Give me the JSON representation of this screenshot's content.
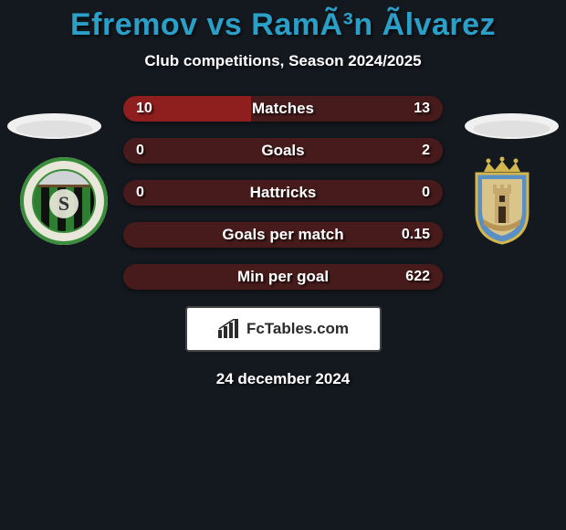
{
  "background_color": "#14191f",
  "title": {
    "player1": "Efremov",
    "vs": " vs ",
    "player2": "RamÃ³n Ãlvarez",
    "color": "#2aa0c9",
    "fontsize": 34
  },
  "subtitle": {
    "text": "Club competitions, Season 2024/2025",
    "color": "#ffffff",
    "fontsize": 17
  },
  "stats": {
    "pill_width": 350,
    "pill_height": 28,
    "pill_radius": 14,
    "pill_bg": "#471b1b",
    "fill_color": "#8f1e1e",
    "label_color": "#ffffff",
    "label_fontsize": 17,
    "rows": [
      {
        "label": "Matches",
        "left_val": "10",
        "right_val": "13",
        "left_fill_pct": 40,
        "right_fill_pct": 0
      },
      {
        "label": "Goals",
        "left_val": "0",
        "right_val": "2",
        "left_fill_pct": 0,
        "right_fill_pct": 0
      },
      {
        "label": "Hattricks",
        "left_val": "0",
        "right_val": "0",
        "left_fill_pct": 0,
        "right_fill_pct": 0
      },
      {
        "label": "Goals per match",
        "left_val": "",
        "right_val": "0.15",
        "left_fill_pct": 0,
        "right_fill_pct": 0
      },
      {
        "label": "Min per goal",
        "left_val": "",
        "right_val": "622",
        "left_fill_pct": 0,
        "right_fill_pct": 0
      }
    ]
  },
  "flags": {
    "left": {
      "bg": "#f0f0f0",
      "accent": "#d0d0d0"
    },
    "right": {
      "bg": "#f0f0f0",
      "accent": "#d0d0d0"
    }
  },
  "badges": {
    "left": {
      "outer_ring": "#3a8d3a",
      "inner_bg": "#0a0a0a",
      "stripe1": "#2e7d32",
      "stripe2": "#111111",
      "text_ring_bg": "#e9e6da",
      "center_text": "S"
    },
    "right": {
      "shield_border": "#d4b64f",
      "shield_blue": "#5a8fc4",
      "shield_sand": "#d9c48a",
      "crown": "#d4b64f",
      "tower": "#c7a970"
    }
  },
  "logo": {
    "box_bg": "#ffffff",
    "border": "#444444",
    "text": "FcTables.com",
    "text_color": "#2b2b2b",
    "chart_color": "#2b2b2b"
  },
  "date": {
    "text": "24 december 2024",
    "color": "#ffffff",
    "fontsize": 17
  }
}
